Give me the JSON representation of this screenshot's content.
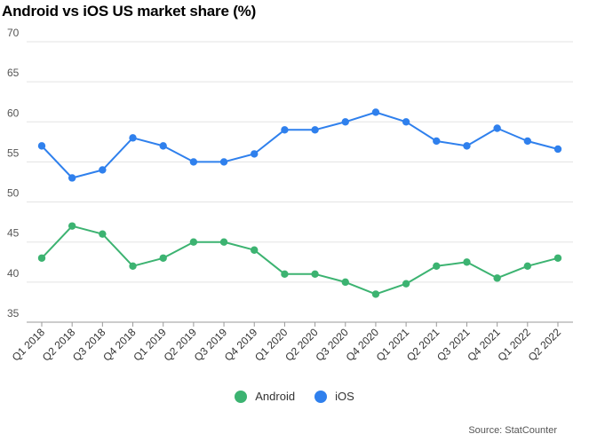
{
  "chart_data": {
    "type": "line",
    "title": "Android vs iOS US market share (%)",
    "source": "Source: StatCounter",
    "categories": [
      "Q1 2018",
      "Q2 2018",
      "Q3 2018",
      "Q4 2018",
      "Q1 2019",
      "Q2 2019",
      "Q3 2019",
      "Q4 2019",
      "Q1 2020",
      "Q2 2020",
      "Q3 2020",
      "Q4 2020",
      "Q1 2021",
      "Q2 2021",
      "Q3 2021",
      "Q4 2021",
      "Q1 2022",
      "Q2 2022"
    ],
    "series": [
      {
        "name": "Android",
        "color": "#3cb371",
        "values": [
          43,
          47,
          46,
          42,
          43,
          45,
          45,
          44,
          41,
          41,
          40,
          38.5,
          39.8,
          42,
          42.5,
          40.5,
          42,
          43
        ]
      },
      {
        "name": "iOS",
        "color": "#2f80ed",
        "values": [
          57,
          53,
          54,
          58,
          57,
          55,
          55,
          56,
          59,
          59,
          60,
          61.2,
          60,
          57.6,
          57,
          59.2,
          57.6,
          56.6
        ]
      }
    ],
    "y_ticks": [
      35,
      40,
      45,
      50,
      55,
      60,
      65,
      70
    ],
    "ylim": [
      35,
      70
    ],
    "grid": true,
    "legend_position": "bottom-center"
  }
}
